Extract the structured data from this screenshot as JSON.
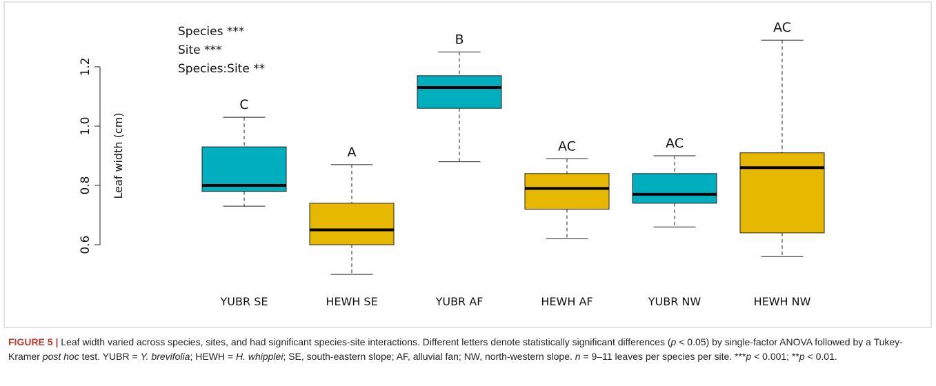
{
  "chart_data": {
    "type": "box",
    "y_label": "Leaf width (cm)",
    "annotations": [
      "Species ***",
      "Site ***",
      "Species:Site **"
    ],
    "categories": [
      "YUBR SE",
      "HEWH SE",
      "YUBR AF",
      "HEWH AF",
      "YUBR NW",
      "HEWH NW"
    ],
    "colors": [
      "#00aebe",
      "#e6b800",
      "#00aebe",
      "#e6b800",
      "#00aebe",
      "#e6b800"
    ],
    "letters": [
      "C",
      "A",
      "B",
      "AC",
      "AC",
      "AC"
    ],
    "boxes": [
      {
        "whisker_low": 0.73,
        "q1": 0.78,
        "median": 0.8,
        "q3": 0.93,
        "whisker_high": 1.03
      },
      {
        "whisker_low": 0.5,
        "q1": 0.6,
        "median": 0.65,
        "q3": 0.74,
        "whisker_high": 0.87
      },
      {
        "whisker_low": 0.88,
        "q1": 1.06,
        "median": 1.13,
        "q3": 1.17,
        "whisker_high": 1.25
      },
      {
        "whisker_low": 0.62,
        "q1": 0.72,
        "median": 0.79,
        "q3": 0.84,
        "whisker_high": 0.89
      },
      {
        "whisker_low": 0.66,
        "q1": 0.74,
        "median": 0.77,
        "q3": 0.84,
        "whisker_high": 0.9
      },
      {
        "whisker_low": 0.56,
        "q1": 0.64,
        "median": 0.86,
        "q3": 0.91,
        "whisker_high": 1.29
      }
    ],
    "ylim": [
      0.47,
      1.33
    ],
    "yticks": [
      0.6,
      0.8,
      {
        "value": 1.0,
        "label": "1.0"
      },
      1.2
    ]
  },
  "caption": {
    "label": "FIGURE 5 |",
    "runs": [
      "Leaf width varied across species, sites, and had significant species-site interactions. Different letters denote statistically significant differences (",
      "p",
      " < 0.05) by single-factor ANOVA followed by a Tukey-Kramer ",
      "post hoc",
      " test. YUBR = ",
      "Y. brevifolia",
      "; HEWH = ",
      "H. whipplei",
      "; SE, south-eastern slope; AF, alluvial fan; NW, north-western slope. ",
      "n",
      " = 9–11 leaves per species per site. ***",
      "p",
      " < 0.001; **",
      "p",
      " < 0.01."
    ]
  }
}
